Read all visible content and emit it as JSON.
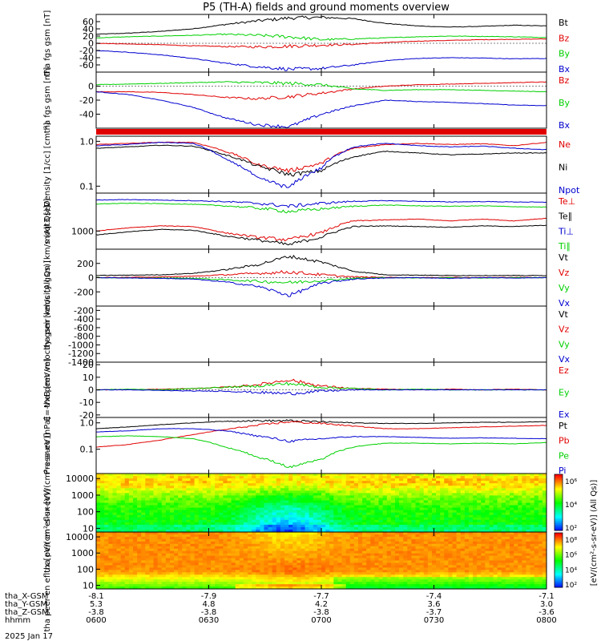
{
  "title": "P5 (TH-A) fields and ground moments overview",
  "colors": {
    "black": "#000000",
    "red": "#e00000",
    "green": "#00d000",
    "blue": "#0000d0"
  },
  "time_axis": {
    "ticks": [
      "0600",
      "0630",
      "0700",
      "0730",
      "0800"
    ],
    "ephemeris": [
      {
        "label": "tha_X-GSM",
        "values": [
          "-8.1",
          "-7.9",
          "-7.7",
          "-7.4",
          "-7.1"
        ]
      },
      {
        "label": "tha_Y-GSM",
        "values": [
          "5.3",
          "4.8",
          "4.2",
          "3.6",
          "3.0"
        ]
      },
      {
        "label": "tha_Z-GSM",
        "values": [
          "-3.8",
          "-3.8",
          "-3.8",
          "-3.7",
          "-3.6"
        ]
      },
      {
        "label": "hhmm",
        "values": [
          "0600",
          "0630",
          "0700",
          "0730",
          "0800"
        ]
      }
    ],
    "date": "2025 Jan 17"
  },
  "colorbar": {
    "label": "[eV/(cm^2-s-sr-eV)] (All Qs)]",
    "ticks_top": [
      "10^6",
      "10^4",
      "10^2"
    ],
    "ticks_bottom": [
      "10^8",
      "10^6",
      "10^4",
      "10^2"
    ]
  },
  "chart_data": [
    {
      "type": "line",
      "ylabel": "tha fgs gsm [nT]",
      "yscale": "linear",
      "ylim": [
        -80,
        80
      ],
      "yticks": [
        "60",
        "40",
        "20",
        "0",
        "-20",
        "-40",
        "-60"
      ],
      "series": [
        {
          "name": "Bt",
          "color": "black",
          "values": [
            25,
            28,
            33,
            40,
            52,
            62,
            70,
            72,
            68,
            55,
            48,
            45,
            47,
            50,
            48
          ]
        },
        {
          "name": "Bz",
          "color": "red",
          "values": [
            0,
            -2,
            -4,
            -7,
            -9,
            -10,
            -8,
            -5,
            -3,
            2,
            6,
            8,
            10,
            11,
            12
          ]
        },
        {
          "name": "By",
          "color": "green",
          "values": [
            15,
            18,
            20,
            22,
            25,
            22,
            18,
            10,
            12,
            15,
            18,
            20,
            19,
            18,
            16
          ]
        },
        {
          "name": "Bx",
          "color": "blue",
          "values": [
            -20,
            -25,
            -32,
            -42,
            -55,
            -65,
            -72,
            -70,
            -60,
            -48,
            -42,
            -40,
            -41,
            -43,
            -42
          ]
        }
      ]
    },
    {
      "type": "line",
      "ylabel": "tha fgs gsm [nT]",
      "yscale": "linear",
      "ylim": [
        -60,
        20
      ],
      "yticks": [
        "0",
        "-20",
        "-40"
      ],
      "series": [
        {
          "name": "Bz",
          "color": "red",
          "values": [
            -8,
            -8,
            -9,
            -12,
            -16,
            -18,
            -15,
            -10,
            -4,
            0,
            2,
            3,
            4,
            5,
            6
          ]
        },
        {
          "name": "By",
          "color": "green",
          "values": [
            2,
            3,
            4,
            5,
            6,
            5,
            4,
            2,
            -4,
            -6,
            -5,
            -5,
            -6,
            -7,
            -8
          ]
        },
        {
          "name": "Bx",
          "color": "blue",
          "values": [
            -8,
            -12,
            -20,
            -30,
            -45,
            -55,
            -58,
            -40,
            -28,
            -20,
            -22,
            -23,
            -25,
            -27,
            -28
          ]
        }
      ]
    },
    {
      "type": "line",
      "ylabel": "Density [1/cc] [cm^-3]",
      "yscale": "log",
      "ylim": [
        0.07,
        1.3
      ],
      "yticks": [
        "1.0",
        "0.1"
      ],
      "series": [
        {
          "name": "Ne",
          "color": "red",
          "values": [
            0.85,
            0.9,
            0.95,
            0.95,
            0.6,
            0.3,
            0.22,
            0.32,
            0.7,
            0.85,
            0.9,
            0.85,
            0.88,
            0.8,
            0.95
          ]
        },
        {
          "name": "Ni",
          "color": "black",
          "values": [
            0.7,
            0.75,
            0.82,
            0.78,
            0.5,
            0.28,
            0.18,
            0.22,
            0.45,
            0.6,
            0.55,
            0.5,
            0.52,
            0.55,
            0.55
          ]
        },
        {
          "name": "Npot",
          "color": "blue",
          "values": [
            0.8,
            0.85,
            0.95,
            0.9,
            0.4,
            0.15,
            0.09,
            0.25,
            0.75,
            0.9,
            0.8,
            0.75,
            0.78,
            0.7,
            0.65
          ]
        }
      ]
    },
    {
      "type": "line",
      "ylabel": "moqt3 [eV]",
      "yscale": "log",
      "ylim": [
        350,
        9000
      ],
      "yticks": [
        "1000"
      ],
      "series": [
        {
          "name": "Te⊥",
          "color": "red",
          "values": [
            1000,
            1200,
            1350,
            1300,
            900,
            700,
            600,
            900,
            1800,
            1900,
            2000,
            1800,
            2000,
            1800,
            2100
          ]
        },
        {
          "name": "Te∥",
          "color": "black",
          "values": [
            800,
            950,
            1100,
            1050,
            750,
            600,
            450,
            700,
            1300,
            1350,
            1300,
            1250,
            1350,
            1300,
            1400
          ]
        },
        {
          "name": "Ti⊥",
          "color": "blue",
          "values": [
            6000,
            6200,
            6000,
            5800,
            5500,
            5000,
            4200,
            5000,
            5600,
            5800,
            5600,
            5400,
            5500,
            5400,
            5300
          ]
        },
        {
          "name": "Ti∥",
          "color": "green",
          "values": [
            4800,
            5000,
            4900,
            4700,
            4300,
            3800,
            3100,
            3600,
            4200,
            4500,
            4300,
            4200,
            4300,
            4100,
            4000
          ]
        }
      ]
    },
    {
      "type": "line",
      "ylabel": "tha peir velocity gsm [km/s (All Qs)]",
      "yscale": "linear",
      "ylim": [
        -400,
        400
      ],
      "yticks": [
        "200",
        "0",
        "-200"
      ],
      "series": [
        {
          "name": "Vt",
          "color": "black",
          "values": [
            30,
            35,
            40,
            60,
            110,
            180,
            300,
            220,
            90,
            40,
            35,
            30,
            30,
            30,
            30
          ]
        },
        {
          "name": "Vz",
          "color": "red",
          "values": [
            0,
            5,
            10,
            20,
            40,
            60,
            80,
            40,
            10,
            5,
            0,
            5,
            0,
            5,
            0
          ]
        },
        {
          "name": "Vy",
          "color": "green",
          "values": [
            0,
            -5,
            -5,
            -10,
            -30,
            -50,
            -70,
            -40,
            -10,
            0,
            -5,
            0,
            -5,
            0,
            0
          ]
        },
        {
          "name": "Vx",
          "color": "blue",
          "values": [
            0,
            -5,
            -10,
            -20,
            -60,
            -120,
            -250,
            -80,
            -20,
            -5,
            0,
            -10,
            0,
            -5,
            0
          ]
        }
      ]
    },
    {
      "type": "line",
      "ylabel": "tha peer velocity gsm [km/s (All Qs)]",
      "yscale": "linear",
      "ylim": [
        -1400,
        -100
      ],
      "yticks": [
        "-200",
        "-400",
        "-600",
        "-800",
        "-1000",
        "-1200",
        "-1400"
      ],
      "series": [
        {
          "name": "Vt",
          "color": "black",
          "values": []
        },
        {
          "name": "Vz",
          "color": "red",
          "values": []
        },
        {
          "name": "Vy",
          "color": "green",
          "values": []
        },
        {
          "name": "Vx",
          "color": "blue",
          "values": []
        }
      ]
    },
    {
      "type": "line",
      "ylabel": "E=-VxB [mV/m]",
      "yscale": "linear",
      "ylim": [
        -22,
        22
      ],
      "yticks": [
        "20",
        "10",
        "0",
        "-10",
        "-20"
      ],
      "series": [
        {
          "name": "Ez",
          "color": "red",
          "values": [
            0,
            0,
            0.5,
            1,
            2,
            4,
            8,
            3,
            1,
            0.5,
            0,
            0.5,
            0,
            0.5,
            0
          ]
        },
        {
          "name": "Ey",
          "color": "green",
          "values": [
            0,
            0.5,
            0,
            1,
            2,
            3,
            5,
            2,
            1,
            0,
            0.5,
            0,
            0,
            0,
            0
          ]
        },
        {
          "name": "Ex",
          "color": "blue",
          "values": [
            0,
            0,
            -0.5,
            -1,
            -1,
            -2,
            -3,
            -1,
            0,
            0,
            0,
            0,
            0,
            0,
            0
          ]
        }
      ]
    },
    {
      "type": "line",
      "ylabel": "Pressure [nPa]",
      "yscale": "log",
      "ylim": [
        0.012,
        1.6
      ],
      "yticks": [
        "1.0",
        "0.1"
      ],
      "series": [
        {
          "name": "Pt",
          "color": "black",
          "values": [
            0.6,
            0.7,
            0.85,
            1.0,
            1.15,
            1.2,
            1.2,
            1.1,
            1.0,
            0.95,
            0.95,
            1.0,
            1.05,
            1.05,
            1.1
          ]
        },
        {
          "name": "Pb",
          "color": "red",
          "values": [
            0.12,
            0.15,
            0.22,
            0.35,
            0.55,
            0.8,
            1.1,
            0.95,
            0.75,
            0.6,
            0.6,
            0.65,
            0.7,
            0.75,
            0.8
          ]
        },
        {
          "name": "Pe",
          "color": "green",
          "values": [
            0.3,
            0.32,
            0.3,
            0.25,
            0.12,
            0.05,
            0.02,
            0.04,
            0.12,
            0.17,
            0.17,
            0.16,
            0.17,
            0.16,
            0.18
          ]
        },
        {
          "name": "Pi",
          "color": "blue",
          "values": [
            0.45,
            0.5,
            0.6,
            0.6,
            0.5,
            0.32,
            0.2,
            0.25,
            0.3,
            0.3,
            0.28,
            0.26,
            0.27,
            0.26,
            0.25
          ]
        }
      ]
    },
    {
      "type": "heatmap",
      "ylabel": "tha peir en eflux [eV/(cm^2-s-sr-eV)]",
      "yscale": "log",
      "ylim": [
        6,
        20000
      ],
      "yticks": [
        "10000",
        "1000",
        "100",
        "10"
      ]
    },
    {
      "type": "heatmap",
      "ylabel": "tha peer en eflux [eV/(cm^2-s-sr-eV)]",
      "yscale": "log",
      "ylim": [
        6,
        20000
      ],
      "yticks": [
        "10000",
        "1000",
        "100",
        "10"
      ]
    }
  ]
}
